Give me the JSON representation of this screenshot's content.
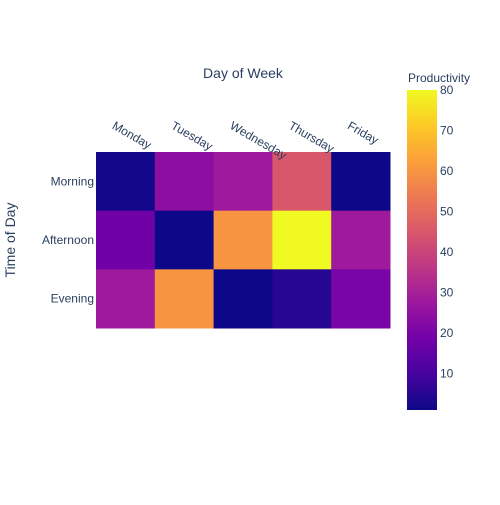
{
  "chart_data": {
    "type": "heatmap",
    "xlabel": "Day of Week",
    "ylabel": "Time of Day",
    "x": [
      "Monday",
      "Tuesday",
      "Wednesday",
      "Thursday",
      "Friday"
    ],
    "y": [
      "Morning",
      "Afternoon",
      "Evening"
    ],
    "z": [
      [
        2,
        24,
        28,
        45,
        1
      ],
      [
        18,
        1,
        60,
        80,
        28
      ],
      [
        28,
        60,
        1,
        5,
        20
      ]
    ],
    "zrange": [
      1,
      80
    ],
    "colorscale": [
      "#0d0887",
      "#46039f",
      "#7201a8",
      "#9c179e",
      "#bd3786",
      "#d8576b",
      "#ed7953",
      "#fb9f3a",
      "#fdca26",
      "#f0f921"
    ],
    "colorbar": {
      "title": "Productivity",
      "ticks": [
        10,
        20,
        30,
        40,
        50,
        60,
        70,
        80
      ]
    }
  }
}
